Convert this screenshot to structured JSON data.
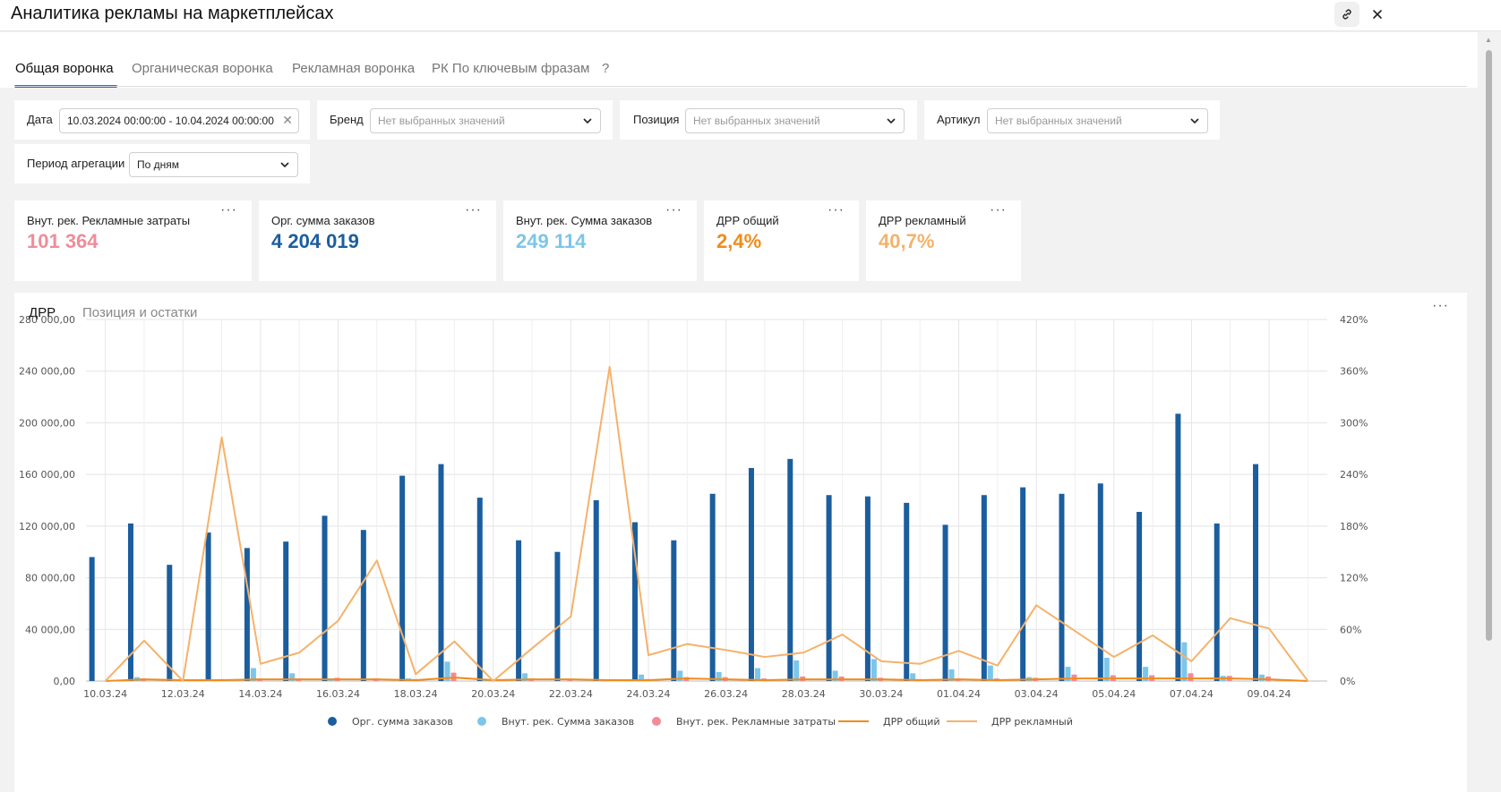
{
  "header": {
    "title": "Аналитика рекламы на маркетплейсах"
  },
  "tabs": [
    {
      "label": "Общая воронка",
      "active": true
    },
    {
      "label": "Органическая воронка",
      "active": false
    },
    {
      "label": "Рекламная воронка",
      "active": false
    },
    {
      "label": "РК По ключевым фразам",
      "active": false
    },
    {
      "label": "?",
      "active": false
    }
  ],
  "filters": {
    "date": {
      "label": "Дата",
      "value": "10.03.2024 00:00:00 - 10.04.2024 00:00:00"
    },
    "brand": {
      "label": "Бренд",
      "placeholder": "Нет выбранных значений"
    },
    "position": {
      "label": "Позиция",
      "placeholder": "Нет выбранных значений"
    },
    "article": {
      "label": "Артикул",
      "placeholder": "Нет выбранных значений"
    },
    "period": {
      "label": "Период агрегации",
      "value": "По дням"
    }
  },
  "kpis": [
    {
      "label": "Внут. рек. Рекламные затраты",
      "value": "101 364",
      "color": "#f08c9a"
    },
    {
      "label": "Орг. сумма заказов",
      "value": "4 204 019",
      "color": "#1b5e9e"
    },
    {
      "label": "Внут. рек. Сумма заказов",
      "value": "249 114",
      "color": "#7cc6ea"
    },
    {
      "label": "ДРР общий",
      "value": "2,4%",
      "color": "#f08c1a"
    },
    {
      "label": "ДРР рекламный",
      "value": "40,7%",
      "color": "#f5b26b"
    }
  ],
  "chart_tabs": [
    {
      "label": "ДРР",
      "active": true
    },
    {
      "label": "Позиция и остатки",
      "active": false
    }
  ],
  "chart_data": {
    "type": "bar",
    "y_left": {
      "range": [
        0,
        280000
      ],
      "ticks": [
        "0,00",
        "40 000,00",
        "80 000,00",
        "120 000,00",
        "160 000,00",
        "200 000,00",
        "240 000,00",
        "280 000,00"
      ]
    },
    "y_right": {
      "range": [
        0,
        420
      ],
      "ticks": [
        "0%",
        "60%",
        "120%",
        "180%",
        "240%",
        "300%",
        "360%",
        "420%"
      ]
    },
    "x_tick_labels": [
      "10.03.24",
      "12.03.24",
      "14.03.24",
      "16.03.24",
      "18.03.24",
      "20.03.24",
      "22.03.24",
      "24.03.24",
      "26.03.24",
      "28.03.24",
      "30.03.24",
      "01.04.24",
      "03.04.24",
      "05.04.24",
      "07.04.24",
      "09.04.24"
    ],
    "grid": true,
    "legend_position": "bottom",
    "series": [
      {
        "name": "Орг. сумма заказов",
        "kind": "bar",
        "axis": "left",
        "color": "#1b5e9e",
        "values": [
          96000,
          122000,
          90000,
          115000,
          103000,
          108000,
          128000,
          117000,
          159000,
          168000,
          142000,
          109000,
          100000,
          140000,
          123000,
          109000,
          145000,
          165000,
          172000,
          144000,
          143000,
          138000,
          121000,
          144000,
          150000,
          145000,
          153000,
          131000,
          207000,
          122000,
          168000,
          0
        ]
      },
      {
        "name": "Внут. рек. Сумма заказов",
        "kind": "bar",
        "axis": "left",
        "color": "#7cc6ea",
        "values": [
          0,
          3000,
          0,
          0,
          10000,
          6000,
          2000,
          0,
          2000,
          15000,
          1000,
          6000,
          0,
          0,
          5000,
          8000,
          7000,
          10000,
          16000,
          8000,
          17000,
          6000,
          9000,
          12000,
          3000,
          11000,
          18000,
          11000,
          30000,
          4000,
          5000,
          0
        ]
      },
      {
        "name": "Внут. рек. Рекламные затраты",
        "kind": "bar",
        "axis": "left",
        "color": "#f28b97",
        "values": [
          0,
          2000,
          1000,
          1500,
          2000,
          2000,
          2500,
          2000,
          1500,
          6500,
          1000,
          2000,
          1500,
          1000,
          1500,
          3000,
          3000,
          2000,
          3500,
          3500,
          2500,
          1500,
          2000,
          2000,
          2500,
          5000,
          4500,
          4500,
          6000,
          4000,
          3500,
          0
        ]
      },
      {
        "name": "ДРР общий",
        "kind": "line",
        "axis": "right",
        "color": "#f08c1a",
        "values": [
          0,
          2,
          1,
          1,
          2,
          2,
          2,
          2,
          1,
          4,
          1,
          2,
          2,
          1,
          1,
          3,
          2,
          1,
          2,
          2,
          2,
          1,
          2,
          1,
          2,
          3,
          3,
          3,
          3,
          3,
          2,
          0
        ]
      },
      {
        "name": "ДРР рекламный",
        "kind": "line",
        "axis": "right",
        "color": "#f5b26b",
        "values": [
          0,
          47,
          0,
          283,
          20,
          33,
          70,
          140,
          8,
          46,
          0,
          38,
          75,
          365,
          30,
          43,
          36,
          28,
          33,
          54,
          23,
          20,
          35,
          18,
          88,
          58,
          28,
          53,
          23,
          73,
          61,
          0
        ]
      }
    ]
  }
}
